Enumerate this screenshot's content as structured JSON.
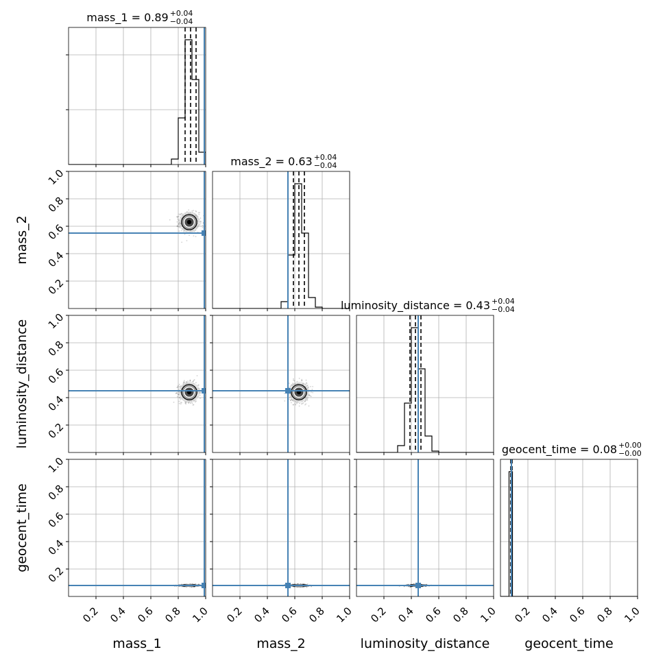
{
  "chart_data": {
    "type": "corner",
    "parameters": [
      "mass_1",
      "mass_2",
      "luminosity_distance",
      "geocent_time"
    ],
    "axis_labels": [
      "mass_1",
      "mass_2",
      "luminosity_distance",
      "geocent_time"
    ],
    "range": [
      0,
      1
    ],
    "ticks": [
      0.2,
      0.4,
      0.6,
      0.8,
      1.0
    ],
    "tick_labels": [
      "0.2",
      "0.4",
      "0.6",
      "0.8",
      "1.0"
    ],
    "grid": true,
    "truths": [
      0.99,
      0.55,
      0.45,
      0.08
    ],
    "truth_color": "#4682b4",
    "titles": [
      {
        "param": "mass_1",
        "text": "mass_1 = 0.89",
        "plus": "+0.04",
        "minus": "−0.04"
      },
      {
        "param": "mass_2",
        "text": "mass_2 = 0.63",
        "plus": "+0.04",
        "minus": "−0.04"
      },
      {
        "param": "luminosity_distance",
        "text": "luminosity_distance = 0.43",
        "plus": "+0.04",
        "minus": "−0.04"
      },
      {
        "param": "geocent_time",
        "text": "geocent_time = 0.08",
        "plus": "+0.00",
        "minus": "−0.00"
      }
    ],
    "quantiles": [
      [
        0.85,
        0.89,
        0.93
      ],
      [
        0.59,
        0.63,
        0.67
      ],
      [
        0.39,
        0.43,
        0.47
      ],
      [
        0.075,
        0.08,
        0.085
      ]
    ],
    "histograms": [
      {
        "bins": [
          0.75,
          0.8,
          0.85,
          0.9,
          0.95,
          1.0
        ],
        "heights": [
          0.04,
          0.34,
          0.91,
          0.62,
          0.09
        ]
      },
      {
        "bins": [
          0.5,
          0.55,
          0.6,
          0.65,
          0.7,
          0.75,
          0.8
        ],
        "heights": [
          0.05,
          0.39,
          0.91,
          0.55,
          0.08,
          0.01
        ]
      },
      {
        "bins": [
          0.3,
          0.35,
          0.4,
          0.45,
          0.5,
          0.55,
          0.6
        ],
        "heights": [
          0.05,
          0.36,
          0.91,
          0.61,
          0.12,
          0.01
        ]
      },
      {
        "bins": [
          0.05,
          0.0625,
          0.075,
          0.0875,
          0.1
        ],
        "heights": [
          0.0,
          0.91,
          0.91,
          0.0
        ]
      }
    ],
    "posterior_center": {
      "mass_1": 0.88,
      "mass_2": 0.63,
      "luminosity_distance": 0.44,
      "geocent_time": 0.08
    },
    "posterior_spread": {
      "mass_1": 0.035,
      "mass_2": 0.035,
      "luminosity_distance": 0.035,
      "geocent_time": 0.004
    }
  }
}
